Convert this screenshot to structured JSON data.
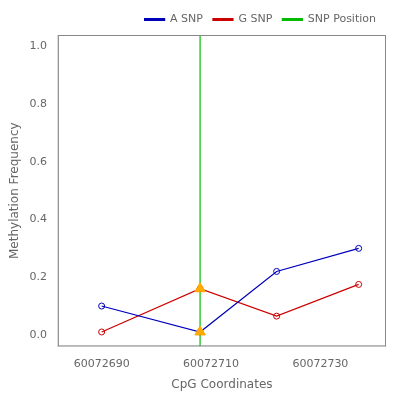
{
  "chart_data": {
    "type": "line",
    "xlabel": "CpG Coordinates",
    "ylabel": "Methylation Frequency",
    "x": [
      60072690,
      60072708,
      60072722,
      60072737
    ],
    "series": [
      {
        "name": "A SNP",
        "color": "#0000bb",
        "marker": "o",
        "values": [
          0.1,
          0.01,
          0.22,
          0.3
        ]
      },
      {
        "name": "G SNP",
        "color": "#cc0000",
        "marker": "o",
        "values": [
          0.01,
          0.16,
          0.065,
          0.175
        ]
      },
      {
        "name": "SNP Position",
        "type": "vline",
        "color": "#00bb00",
        "x": 60072708
      },
      {
        "type": "scatter",
        "color": "#ffaa00",
        "marker": "^",
        "x": [
          60072708,
          60072708
        ],
        "values": [
          0.16,
          0.01
        ]
      }
    ],
    "xlim": [
      60072682,
      60072742
    ],
    "ylim": [
      -0.04,
      1.04
    ],
    "xticks": [
      60072690,
      60072710,
      60072730
    ],
    "yticks": [
      {
        "value": 0.0,
        "label": "0.0"
      },
      0.2,
      0.4,
      0.6,
      0.8,
      {
        "value": 1.0,
        "label": "1.0"
      }
    ],
    "grid": false,
    "legend": "upper right"
  }
}
